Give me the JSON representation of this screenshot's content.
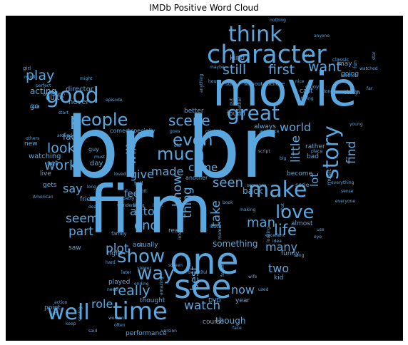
{
  "chart_data": {
    "type": "wordcloud",
    "title": "IMDb Positive Word Cloud",
    "background": "#000000",
    "word_color": "#5aa7df",
    "words": [
      {
        "text": "br",
        "weight": 100
      },
      {
        "text": "br",
        "weight": 100
      },
      {
        "text": "movie",
        "weight": 58
      },
      {
        "text": "film",
        "weight": 80
      },
      {
        "text": "one",
        "weight": 45
      },
      {
        "text": "see",
        "weight": 40
      },
      {
        "text": "character",
        "weight": 32
      },
      {
        "text": "think",
        "weight": 26
      },
      {
        "text": "good",
        "weight": 26
      },
      {
        "text": "time",
        "weight": 30
      },
      {
        "text": "well",
        "weight": 26
      },
      {
        "text": "story",
        "weight": 26
      },
      {
        "text": "make",
        "weight": 26
      },
      {
        "text": "great",
        "weight": 24
      },
      {
        "text": "people",
        "weight": 22
      },
      {
        "text": "show",
        "weight": 22
      },
      {
        "text": "way",
        "weight": 22
      },
      {
        "text": "love",
        "weight": 22
      },
      {
        "text": "much",
        "weight": 20
      },
      {
        "text": "even",
        "weight": 20
      },
      {
        "text": "scene",
        "weight": 17
      },
      {
        "text": "play",
        "weight": 17
      },
      {
        "text": "still",
        "weight": 17
      },
      {
        "text": "first",
        "weight": 17
      },
      {
        "text": "want",
        "weight": 17
      },
      {
        "text": "little",
        "weight": 15
      },
      {
        "text": "find",
        "weight": 15
      },
      {
        "text": "world",
        "weight": 14
      },
      {
        "text": "look",
        "weight": 16
      },
      {
        "text": "work",
        "weight": 16
      },
      {
        "text": "will",
        "weight": 16
      },
      {
        "text": "give",
        "weight": 14
      },
      {
        "text": "made",
        "weight": 14
      },
      {
        "text": "come",
        "weight": 13
      },
      {
        "text": "say",
        "weight": 14
      },
      {
        "text": "seem",
        "weight": 15
      },
      {
        "text": "part",
        "weight": 15
      },
      {
        "text": "end",
        "weight": 16
      },
      {
        "text": "know",
        "weight": 15
      },
      {
        "text": "thing",
        "weight": 15
      },
      {
        "text": "seen",
        "weight": 16
      },
      {
        "text": "take",
        "weight": 15
      },
      {
        "text": "man",
        "weight": 16
      },
      {
        "text": "life",
        "weight": 18
      },
      {
        "text": "actor",
        "weight": 14
      },
      {
        "text": "feel",
        "weight": 12
      },
      {
        "text": "lot",
        "weight": 13
      },
      {
        "text": "plot",
        "weight": 15
      },
      {
        "text": "many",
        "weight": 14
      },
      {
        "text": "best",
        "weight": 13
      },
      {
        "text": "two",
        "weight": 14
      },
      {
        "text": "really",
        "weight": 17
      },
      {
        "text": "now",
        "weight": 14
      },
      {
        "text": "watch",
        "weight": 15
      },
      {
        "text": "role",
        "weight": 14
      },
      {
        "text": "back",
        "weight": 11
      },
      {
        "text": "acting",
        "weight": 10
      },
      {
        "text": "fact",
        "weight": 10
      },
      {
        "text": "something",
        "weight": 10
      },
      {
        "text": "though",
        "weight": 10
      },
      {
        "text": "kind",
        "weight": 8
      },
      {
        "text": "director",
        "weight": 8
      },
      {
        "text": "never",
        "weight": 8
      },
      {
        "text": "quite",
        "weight": 8
      },
      {
        "text": "go",
        "weight": 8
      },
      {
        "text": "set",
        "weight": 8
      },
      {
        "text": "new",
        "weight": 7
      },
      {
        "text": "watching",
        "weight": 8
      },
      {
        "text": "live",
        "weight": 7
      },
      {
        "text": "gets",
        "weight": 7
      },
      {
        "text": "friend",
        "weight": 7
      },
      {
        "text": "saw",
        "weight": 7
      },
      {
        "text": "right",
        "weight": 7
      },
      {
        "text": "actually",
        "weight": 7
      },
      {
        "text": "real",
        "weight": 7
      },
      {
        "text": "better",
        "weight": 7
      },
      {
        "text": "found",
        "weight": 7
      },
      {
        "text": "always",
        "weight": 7
      },
      {
        "text": "cast",
        "weight": 7
      },
      {
        "text": "may",
        "weight": 7
      },
      {
        "text": "going",
        "weight": 7
      },
      {
        "text": "turn",
        "weight": 7
      },
      {
        "text": "become",
        "weight": 7
      },
      {
        "text": "rather",
        "weight": 7
      },
      {
        "text": "bad",
        "weight": 7
      },
      {
        "text": "almost",
        "weight": 7
      },
      {
        "text": "funny",
        "weight": 7
      },
      {
        "text": "played",
        "weight": 7
      },
      {
        "text": "thought",
        "weight": 7
      },
      {
        "text": "point",
        "weight": 7
      },
      {
        "text": "performance",
        "weight": 7
      },
      {
        "text": "course",
        "weight": 7
      },
      {
        "text": "year",
        "weight": 7
      },
      {
        "text": "kid",
        "weight": 7
      },
      {
        "text": "music",
        "weight": 6
      },
      {
        "text": "serie",
        "weight": 6
      },
      {
        "text": "another",
        "weight": 6
      },
      {
        "text": "comedy",
        "weight": 6
      },
      {
        "text": "especially",
        "weight": 6
      },
      {
        "text": "tell",
        "weight": 6
      },
      {
        "text": "day",
        "weight": 7
      },
      {
        "text": "guy",
        "weight": 6
      },
      {
        "text": "sure",
        "weight": 5
      },
      {
        "text": "without",
        "weight": 5
      },
      {
        "text": "believe",
        "weight": 5
      },
      {
        "text": "classic",
        "weight": 5
      },
      {
        "text": "nothing",
        "weight": 4
      },
      {
        "text": "anyone",
        "weight": 4
      },
      {
        "text": "star",
        "weight": 4
      },
      {
        "text": "fun",
        "weight": 5
      },
      {
        "text": "true",
        "weight": 5
      },
      {
        "text": "maybe",
        "weight": 4
      },
      {
        "text": "girl",
        "weight": 5
      },
      {
        "text": "mind",
        "weight": 4
      },
      {
        "text": "perfect",
        "weight": 4
      },
      {
        "text": "might",
        "weight": 4
      },
      {
        "text": "although",
        "weight": 5
      },
      {
        "text": "episode",
        "weight": 4
      },
      {
        "text": "read",
        "weight": 4
      },
      {
        "text": "start",
        "weight": 4
      },
      {
        "text": "others",
        "weight": 4
      },
      {
        "text": "around",
        "weight": 4
      },
      {
        "text": "house",
        "weight": 4
      },
      {
        "text": "nice",
        "weight": 4
      },
      {
        "text": "enjoy",
        "weight": 5
      },
      {
        "text": "watched",
        "weight": 4
      },
      {
        "text": "mother",
        "weight": 4
      },
      {
        "text": "far",
        "weight": 4
      },
      {
        "text": "enough",
        "weight": 4
      },
      {
        "text": "done",
        "weight": 4
      },
      {
        "text": "trying",
        "weight": 4
      },
      {
        "text": "young",
        "weight": 4
      },
      {
        "text": "audience",
        "weight": 4
      },
      {
        "text": "original",
        "weight": 4
      },
      {
        "text": "script",
        "weight": 4
      },
      {
        "text": "place",
        "weight": 4
      },
      {
        "text": "everything",
        "weight": 4
      },
      {
        "text": "sense",
        "weight": 4
      },
      {
        "text": "everyone",
        "weight": 4
      },
      {
        "text": "use",
        "weight": 4
      },
      {
        "text": "eye",
        "weight": 4
      },
      {
        "text": "song",
        "weight": 4
      },
      {
        "text": "must",
        "weight": 4
      },
      {
        "text": "loved",
        "weight": 4
      },
      {
        "text": "probably",
        "weight": 4
      },
      {
        "text": "wonderful",
        "weight": 4
      },
      {
        "text": "long",
        "weight": 4
      },
      {
        "text": "least",
        "weight": 4
      },
      {
        "text": "book",
        "weight": 4
      },
      {
        "text": "someone",
        "weight": 4
      },
      {
        "text": "death",
        "weight": 4
      },
      {
        "text": "family",
        "weight": 5
      },
      {
        "text": "along",
        "weight": 4
      },
      {
        "text": "interesting",
        "weight": 4
      },
      {
        "text": "making",
        "weight": 4
      },
      {
        "text": "looking",
        "weight": 4
      },
      {
        "text": "shot",
        "weight": 4
      },
      {
        "text": "leave",
        "weight": 4
      },
      {
        "text": "moment",
        "weight": 4
      },
      {
        "text": "excellent",
        "weight": 4
      },
      {
        "text": "fan",
        "weight": 4
      },
      {
        "text": "hard",
        "weight": 4
      },
      {
        "text": "viewer",
        "weight": 4
      },
      {
        "text": "screen",
        "weight": 4
      },
      {
        "text": "later",
        "weight": 4
      },
      {
        "text": "beautiful",
        "weight": 4
      },
      {
        "text": "feeling",
        "weight": 4
      },
      {
        "text": "wife",
        "weight": 4
      },
      {
        "text": "ending",
        "weight": 4
      },
      {
        "text": "amazing",
        "weight": 4
      },
      {
        "text": "need",
        "weight": 4
      },
      {
        "text": "used",
        "weight": 4
      },
      {
        "text": "DVD",
        "weight": 5
      },
      {
        "text": "idea",
        "weight": 4
      },
      {
        "text": "action",
        "weight": 4
      },
      {
        "text": "keep",
        "weight": 4
      },
      {
        "text": "woman",
        "weight": 4
      },
      {
        "text": "often",
        "weight": 4
      },
      {
        "text": "left",
        "weight": 4
      },
      {
        "text": "said",
        "weight": 4
      },
      {
        "text": "seeing",
        "weight": 4
      },
      {
        "text": "version",
        "weight": 4
      },
      {
        "text": "face",
        "weight": 4
      },
      {
        "text": "American",
        "weight": 4
      },
      {
        "text": "anything",
        "weight": 4
      },
      {
        "text": "put",
        "weight": 4
      },
      {
        "text": "together",
        "weight": 4
      },
      {
        "text": "goes",
        "weight": 4
      },
      {
        "text": "bit",
        "weight": 4
      },
      {
        "text": "old",
        "weight": 4
      },
      {
        "text": "big",
        "weight": 4
      }
    ]
  }
}
